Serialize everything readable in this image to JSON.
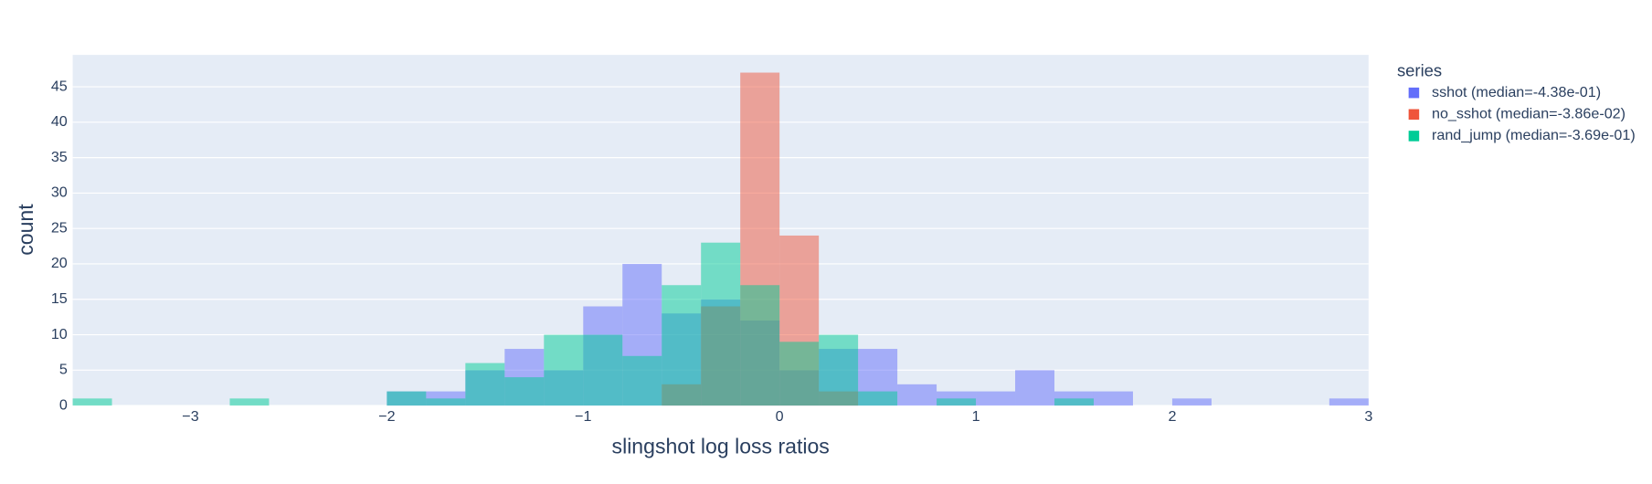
{
  "chart_data": {
    "type": "histogram",
    "xlabel": "slingshot log loss ratios",
    "ylabel": "count",
    "legend_title": "series",
    "bins": [
      -3.6,
      -3.4,
      -3.2,
      -3.0,
      -2.8,
      -2.6,
      -2.4,
      -2.2,
      -2.0,
      -1.8,
      -1.6,
      -1.4,
      -1.2,
      -1.0,
      -0.8,
      -0.6,
      -0.4,
      -0.2,
      0.0,
      0.2,
      0.4,
      0.6,
      0.8,
      1.0,
      1.2,
      1.4,
      1.6,
      1.8,
      2.0,
      2.2,
      2.4,
      2.6,
      2.8,
      3.0
    ],
    "series": [
      {
        "name": "sshot (median=-4.38e-01)",
        "color": "#636efa",
        "values": [
          0,
          0,
          0,
          0,
          0,
          0,
          0,
          0,
          2,
          2,
          5,
          8,
          5,
          14,
          20,
          13,
          15,
          12,
          5,
          8,
          8,
          3,
          2,
          2,
          5,
          2,
          2,
          0,
          1,
          0,
          0,
          0,
          1
        ]
      },
      {
        "name": "no_sshot (median=-3.86e-02)",
        "color": "#ef553b",
        "values": [
          0,
          0,
          0,
          0,
          0,
          0,
          0,
          0,
          0,
          0,
          0,
          0,
          0,
          0,
          0,
          3,
          14,
          47,
          24,
          2,
          0,
          0,
          0,
          0,
          0,
          0,
          0,
          0,
          0,
          0,
          0,
          0,
          0
        ]
      },
      {
        "name": "rand_jump (median=-3.69e-01)",
        "color": "#00cc96",
        "values": [
          1,
          0,
          0,
          0,
          1,
          0,
          0,
          0,
          2,
          1,
          6,
          4,
          10,
          10,
          7,
          17,
          23,
          17,
          9,
          10,
          2,
          0,
          1,
          0,
          0,
          1,
          0,
          0,
          0,
          0,
          0,
          0,
          0
        ]
      }
    ],
    "opacity": 0.5,
    "xlim": [
      -3.6,
      3.0
    ],
    "xticks": [
      {
        "value": -3,
        "label": "−3"
      },
      {
        "value": -2,
        "label": "−2"
      },
      {
        "value": -1,
        "label": "−1"
      },
      0,
      1,
      2,
      3
    ],
    "ylim": [
      0,
      49.5
    ],
    "yticks": [
      0,
      5,
      10,
      15,
      20,
      25,
      30,
      35,
      40,
      45
    ],
    "grid": true
  }
}
